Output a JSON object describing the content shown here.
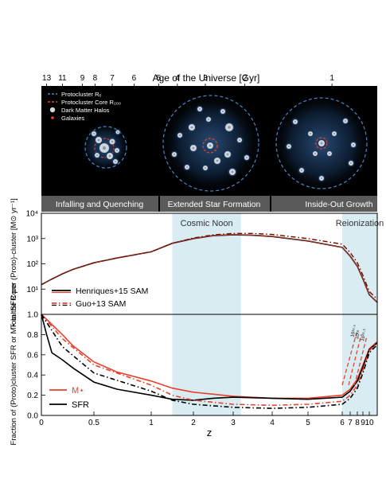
{
  "top_axis": {
    "label": "Age of the Universe  [Gyr]",
    "ticks": [
      {
        "label": "13",
        "z": 0.05
      },
      {
        "label": "11",
        "z": 0.2
      },
      {
        "label": "9",
        "z": 0.39
      },
      {
        "label": "8",
        "z": 0.51
      },
      {
        "label": "7",
        "z": 0.66
      },
      {
        "label": "6",
        "z": 0.85
      },
      {
        "label": "5",
        "z": 1.18
      },
      {
        "label": "4",
        "z": 1.62
      },
      {
        "label": "3",
        "z": 2.3
      },
      {
        "label": "2",
        "z": 3.3
      },
      {
        "label": "1",
        "z": 5.7
      }
    ]
  },
  "illustration": {
    "legend": [
      {
        "label": "Protocluster Rₑ",
        "icon": "blue-dashed-line-icon"
      },
      {
        "label": "Protocluster Core R₂₀₀",
        "icon": "red-dashed-line-icon"
      },
      {
        "label": "Dark Matter Halos",
        "icon": "halo-dot-icon"
      },
      {
        "label": "Galaxies",
        "icon": "galaxy-dot-icon"
      }
    ],
    "captions": [
      "Infalling and Quenching",
      "Extended Star Formation",
      "Inside-Out Growth"
    ]
  },
  "shaded_regions": [
    {
      "label": "Cosmic Noon",
      "z_range": [
        1.5,
        3.2
      ]
    },
    {
      "label": "Reionization",
      "z_range": [
        6.0,
        10.5
      ]
    }
  ],
  "chart_data": [
    {
      "type": "line",
      "title": "",
      "ylabel": "Total SFR per (Proto)-cluster [M⊙ yr⁻¹]",
      "ylog": true,
      "ylim": [
        1,
        10000
      ],
      "yticks": [
        {
          "v": 10,
          "label": "10¹"
        },
        {
          "v": 100,
          "label": "10²"
        },
        {
          "v": 1000,
          "label": "10³"
        },
        {
          "v": 10000,
          "label": "10⁴"
        }
      ],
      "legend_position": "bottom-left",
      "series": [
        {
          "name": "Henriques+15 SAM",
          "color": "#000000",
          "color2": "#e8412c",
          "style": "solid",
          "x": [
            0.0,
            0.1,
            0.2,
            0.3,
            0.5,
            0.7,
            1.0,
            1.5,
            2.0,
            2.5,
            3.0,
            3.5,
            4.0,
            5.0,
            6.0,
            7.0,
            8.0,
            9.0,
            10.0,
            10.5
          ],
          "y": [
            15,
            25,
            40,
            60,
            110,
            170,
            300,
            650,
            1000,
            1300,
            1400,
            1350,
            1200,
            800,
            450,
            200,
            80,
            25,
            6,
            3
          ]
        },
        {
          "name": "Guo+13 SAM",
          "color": "#e8412c",
          "color2": "#000000",
          "style": "dashdot",
          "x": [
            0.0,
            0.1,
            0.2,
            0.3,
            0.5,
            0.7,
            1.0,
            1.5,
            2.0,
            2.5,
            3.0,
            3.5,
            4.0,
            5.0,
            6.0,
            7.0,
            8.0,
            9.0,
            10.0,
            10.5
          ],
          "y": [
            15,
            25,
            40,
            60,
            110,
            170,
            300,
            650,
            1050,
            1400,
            1600,
            1600,
            1450,
            1000,
            600,
            280,
            110,
            35,
            8,
            4
          ]
        }
      ]
    },
    {
      "type": "line",
      "title": "",
      "xlabel": "z",
      "ylabel": "Fraction of (Proto)cluster SFR or M⋆ in the Core",
      "ylim": [
        0.0,
        1.0
      ],
      "yticks": [
        {
          "v": 0.0,
          "label": "0.0"
        },
        {
          "v": 0.2,
          "label": "0.2"
        },
        {
          "v": 0.4,
          "label": "0.4"
        },
        {
          "v": 0.6,
          "label": "0.6"
        },
        {
          "v": 0.8,
          "label": "0.8"
        },
        {
          "v": 1.0,
          "label": "1.0"
        }
      ],
      "xlim": [
        0,
        10.5
      ],
      "xticks": [
        {
          "v": 0,
          "label": "0"
        },
        {
          "v": 0.5,
          "label": "0.5"
        },
        {
          "v": 1,
          "label": "1"
        },
        {
          "v": 2,
          "label": "2"
        },
        {
          "v": 3,
          "label": "3"
        },
        {
          "v": 4,
          "label": "4"
        },
        {
          "v": 5,
          "label": "5"
        },
        {
          "v": 6,
          "label": "6"
        },
        {
          "v": 7,
          "label": "7"
        },
        {
          "v": 8,
          "label": "8"
        },
        {
          "v": 9,
          "label": "9"
        },
        {
          "v": 10,
          "label": "10"
        }
      ],
      "legend_position": "bottom-left",
      "series": [
        {
          "name": "M⋆",
          "color": "#e8412c",
          "style": "solid",
          "x": [
            0.0,
            0.1,
            0.2,
            0.3,
            0.5,
            0.7,
            1.0,
            1.5,
            2.0,
            2.5,
            3.0,
            4.0,
            5.0,
            6.0,
            7.0,
            8.0,
            9.0,
            10.0,
            10.5
          ],
          "y": [
            1.0,
            0.9,
            0.8,
            0.69,
            0.53,
            0.43,
            0.34,
            0.27,
            0.23,
            0.21,
            0.19,
            0.17,
            0.17,
            0.2,
            0.26,
            0.36,
            0.5,
            0.66,
            0.73
          ]
        },
        {
          "name": "SFR",
          "color": "#000000",
          "style": "solid",
          "x": [
            0.0,
            0.05,
            0.1,
            0.2,
            0.3,
            0.5,
            0.7,
            1.0,
            1.5,
            2.0,
            2.5,
            3.0,
            4.0,
            5.0,
            6.0,
            7.0,
            8.0,
            9.0,
            10.0,
            10.5
          ],
          "y": [
            1.0,
            0.8,
            0.62,
            0.55,
            0.47,
            0.33,
            0.26,
            0.2,
            0.16,
            0.15,
            0.17,
            0.18,
            0.17,
            0.16,
            0.18,
            0.24,
            0.34,
            0.48,
            0.65,
            0.72
          ]
        },
        {
          "name": "",
          "color": "#e8412c",
          "style": "dashdot",
          "x": [
            0.0,
            0.2,
            0.5,
            1.0,
            1.5,
            2.0,
            3.0,
            4.0,
            5.0,
            6.0,
            7.0,
            8.0,
            9.0,
            10.0,
            10.5
          ],
          "y": [
            1.0,
            0.76,
            0.5,
            0.3,
            0.2,
            0.15,
            0.11,
            0.1,
            0.11,
            0.14,
            0.2,
            0.3,
            0.45,
            0.64,
            0.72
          ]
        },
        {
          "name": "",
          "color": "#000000",
          "style": "dashdot",
          "x": [
            0.0,
            0.2,
            0.5,
            1.0,
            1.5,
            2.0,
            3.0,
            4.0,
            5.0,
            6.0,
            7.0,
            8.0,
            9.0,
            10.0,
            10.5
          ],
          "y": [
            1.0,
            0.68,
            0.42,
            0.24,
            0.15,
            0.11,
            0.08,
            0.07,
            0.08,
            0.11,
            0.17,
            0.27,
            0.42,
            0.62,
            0.7
          ]
        }
      ],
      "mass_threshold_lines": [
        {
          "label": "10¹⁹·⁵",
          "x0": 6.0,
          "y0": 0.3,
          "x1": 7.9,
          "y1": 0.82
        },
        {
          "label": "10¹⁹",
          "x0": 6.8,
          "y0": 0.3,
          "x1": 8.7,
          "y1": 0.8
        },
        {
          "label": "10¹⁹·⁵",
          "x0": 7.6,
          "y0": 0.3,
          "x1": 9.6,
          "y1": 0.78
        }
      ]
    }
  ]
}
